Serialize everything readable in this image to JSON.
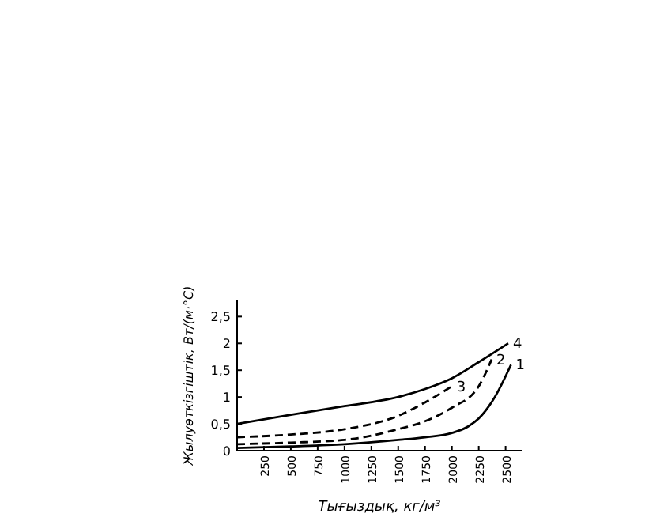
{
  "chart_data": {
    "type": "line",
    "xlabel": "Тығыздық, кг/м³",
    "ylabel": "Жылуөткізгіштік, Вт/(м·°С)",
    "xlim": [
      0,
      2650
    ],
    "ylim": [
      0,
      2.8
    ],
    "xticks": [
      250,
      500,
      750,
      1000,
      1250,
      1500,
      1750,
      2000,
      2250,
      2500
    ],
    "yticks": [
      0,
      {
        "value": 0.5,
        "label": "0,5"
      },
      1,
      {
        "value": 1.5,
        "label": "1,5"
      },
      2,
      {
        "value": 2.5,
        "label": "2,5"
      }
    ],
    "marker": "none",
    "series": [
      {
        "name": "1",
        "color": "#000000",
        "line_style": "solid",
        "x": [
          0,
          500,
          1000,
          1500,
          1750,
          2000,
          2150,
          2250,
          2400,
          2550
        ],
        "values": [
          0.05,
          0.08,
          0.12,
          0.2,
          0.25,
          0.33,
          0.45,
          0.6,
          1.0,
          1.6
        ]
      },
      {
        "name": "2",
        "color": "#000000",
        "line_style": "dashed",
        "x": [
          0,
          500,
          1000,
          1500,
          1750,
          2000,
          2250,
          2370
        ],
        "values": [
          0.12,
          0.15,
          0.2,
          0.4,
          0.55,
          0.8,
          1.2,
          1.7
        ]
      },
      {
        "name": "3",
        "color": "#000000",
        "line_style": "dashed",
        "x": [
          0,
          500,
          1000,
          1500,
          1750,
          2000
        ],
        "values": [
          0.25,
          0.3,
          0.4,
          0.65,
          0.9,
          1.2
        ]
      },
      {
        "name": "4",
        "color": "#000000",
        "line_style": "solid",
        "x": [
          0,
          500,
          1000,
          1500,
          1750,
          2000,
          2250,
          2525
        ],
        "values": [
          0.5,
          0.67,
          0.83,
          1.0,
          1.15,
          1.35,
          1.65,
          2.0
        ]
      }
    ]
  }
}
